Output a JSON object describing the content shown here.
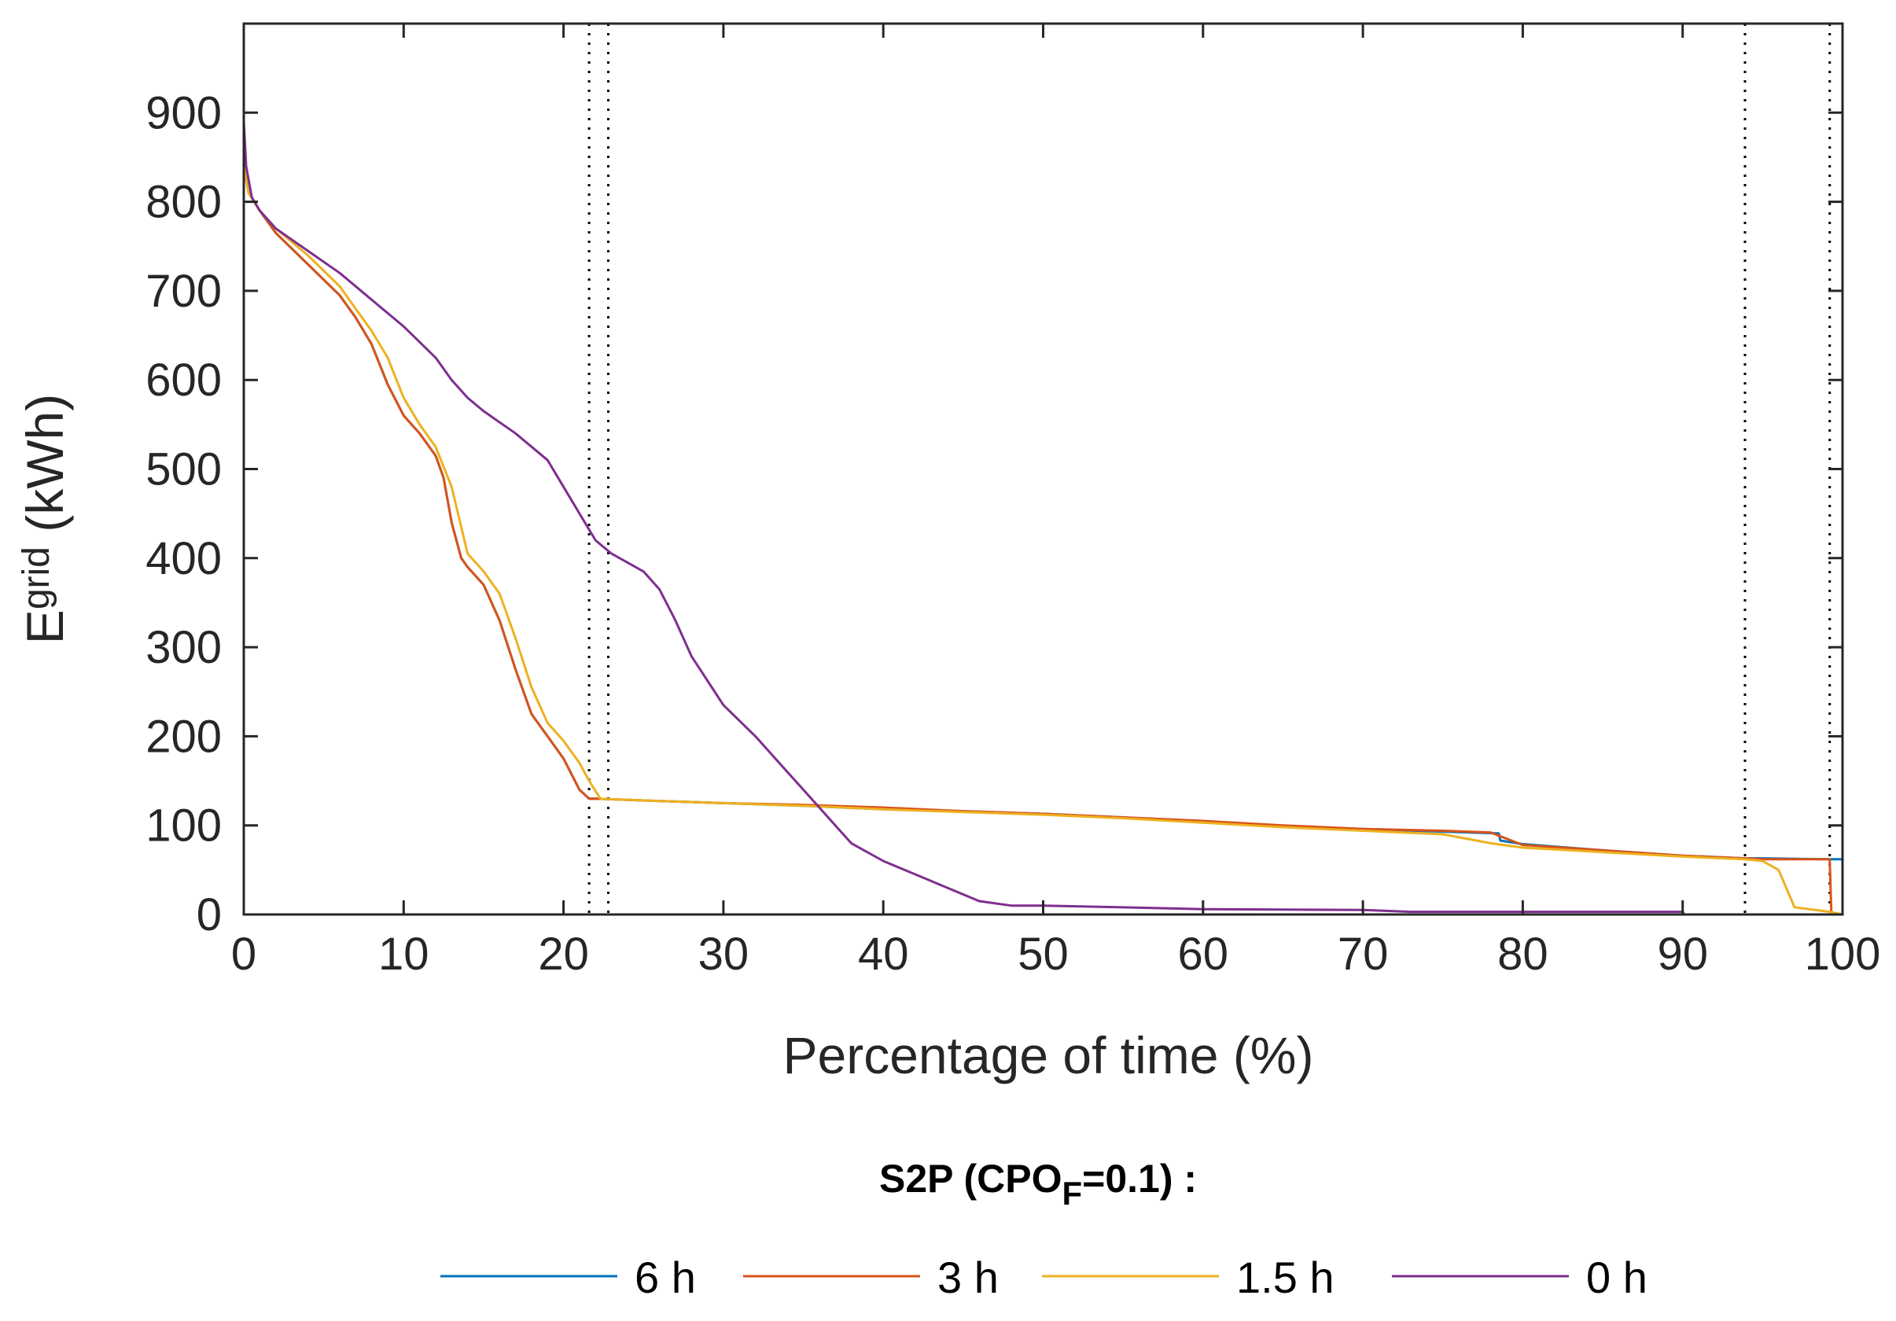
{
  "chart_data": {
    "type": "line",
    "title": "",
    "xlabel": "Percentage of time (%)",
    "ylabel": {
      "main": "E",
      "sub": "grid",
      "unit": " (kWh)"
    },
    "xlim": [
      0,
      100
    ],
    "ylim": [
      0,
      1000
    ],
    "xticks": [
      0,
      10,
      20,
      30,
      40,
      50,
      60,
      70,
      80,
      90,
      100
    ],
    "yticks": [
      0,
      100,
      200,
      300,
      400,
      500,
      600,
      700,
      800,
      900
    ],
    "grid": false,
    "vlines": [
      21.6,
      22.8,
      93.9,
      99.2
    ],
    "legend": {
      "title": {
        "prefix": "S2P (CPO",
        "sub": "F",
        "suffix": "=0.1) :"
      },
      "position": "bottom"
    },
    "series": [
      {
        "name": "6 h",
        "color": "#0072BD",
        "x": [
          0,
          0.3,
          1,
          2,
          4,
          6,
          7,
          8,
          9,
          10,
          11,
          12,
          12.5,
          13,
          13.6,
          14,
          15,
          16,
          17,
          18,
          19,
          20,
          21,
          21.6,
          22,
          25,
          30,
          35,
          40,
          45,
          50,
          55,
          60,
          65,
          70,
          75,
          78.5,
          78.6,
          80,
          85,
          90,
          93.9,
          95,
          99.2,
          99.3,
          100,
          100
        ],
        "y": [
          840,
          810,
          790,
          765,
          730,
          695,
          670,
          640,
          595,
          560,
          540,
          515,
          490,
          440,
          400,
          390,
          370,
          330,
          275,
          225,
          200,
          175,
          140,
          130,
          130,
          128,
          125,
          122,
          118,
          116,
          113,
          109,
          104,
          99,
          96,
          93,
          91,
          83,
          79,
          72,
          66,
          63,
          63,
          62,
          62,
          62,
          0
        ]
      },
      {
        "name": "3 h",
        "color": "#D95319",
        "x": [
          0,
          0.3,
          1,
          2,
          4,
          6,
          7,
          8,
          9,
          10,
          11,
          12,
          12.5,
          13,
          13.6,
          14,
          15,
          16,
          17,
          18,
          19,
          20,
          21,
          21.6,
          22,
          25,
          30,
          35,
          40,
          45,
          50,
          55,
          60,
          65,
          70,
          75,
          78,
          80,
          85,
          90,
          93.9,
          95,
          99.2,
          99.3,
          100
        ],
        "y": [
          840,
          810,
          790,
          765,
          730,
          695,
          670,
          640,
          595,
          560,
          540,
          515,
          490,
          440,
          400,
          390,
          370,
          330,
          275,
          225,
          200,
          175,
          140,
          130,
          130,
          128,
          125,
          123,
          120,
          116,
          113,
          109,
          105,
          100,
          96,
          94,
          92,
          78,
          72,
          66,
          63,
          62,
          62,
          2,
          0
        ]
      },
      {
        "name": "1.5 h",
        "color": "#EDB120",
        "x": [
          0,
          0.3,
          1,
          2,
          4,
          6,
          7,
          8,
          9,
          10,
          11,
          12,
          13,
          14,
          15,
          16,
          17,
          18,
          19,
          20,
          21,
          21.6,
          22.3,
          25,
          30,
          35,
          40,
          45,
          50,
          55,
          60,
          65,
          70,
          75,
          78,
          80,
          85,
          90,
          93.9,
          95,
          96,
          97,
          99.2,
          100
        ],
        "y": [
          840,
          810,
          790,
          770,
          740,
          705,
          680,
          655,
          625,
          580,
          550,
          525,
          480,
          405,
          385,
          360,
          310,
          255,
          215,
          195,
          170,
          150,
          130,
          128,
          125,
          122,
          118,
          115,
          112,
          108,
          103,
          98,
          94,
          90,
          80,
          75,
          70,
          65,
          62,
          60,
          50,
          8,
          3,
          0
        ]
      },
      {
        "name": "0 h",
        "color": "#7E2F8E",
        "x": [
          0,
          0.15,
          0.5,
          1,
          2,
          4,
          6,
          8,
          10,
          12,
          13,
          14,
          15,
          17,
          19,
          20,
          21,
          22,
          23,
          25,
          26,
          27,
          28,
          30,
          32,
          34,
          36,
          37,
          38,
          40,
          42,
          44,
          46,
          48,
          50,
          55,
          60,
          70,
          73,
          80,
          90,
          90.1,
          100
        ],
        "y": [
          890,
          840,
          805,
          790,
          770,
          745,
          720,
          690,
          660,
          625,
          600,
          580,
          565,
          540,
          510,
          480,
          450,
          420,
          405,
          385,
          365,
          330,
          290,
          235,
          200,
          160,
          120,
          100,
          80,
          60,
          45,
          30,
          15,
          10,
          10,
          8,
          6,
          5,
          3,
          3,
          3,
          0,
          0
        ]
      }
    ]
  }
}
